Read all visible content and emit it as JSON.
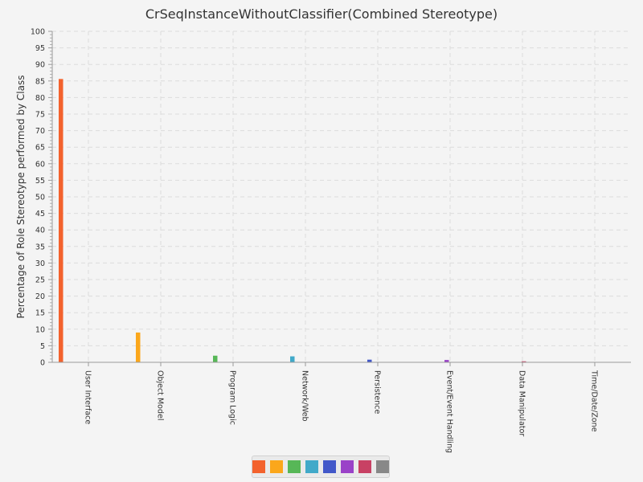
{
  "chart_data": {
    "type": "bar",
    "title": "CrSeqInstanceWithoutClassifier(Combined Stereotype)",
    "xlabel": "",
    "ylabel": "Percentage of Role Stereotype performed by Class",
    "ylim": [
      0,
      100
    ],
    "yticks": [
      0,
      5,
      10,
      15,
      20,
      25,
      30,
      35,
      40,
      45,
      50,
      55,
      60,
      65,
      70,
      75,
      80,
      85,
      90,
      95,
      100
    ],
    "grid": true,
    "legend_position": "bottom",
    "categories": [
      "User Interface",
      "Object Model",
      "Program Logic",
      "Network/Web",
      "Persistence",
      "Event/Event Handling",
      "Data Manipulator",
      "Time/Date/Zone"
    ],
    "series": [
      {
        "color": "#f3622d",
        "values": [
          85.6,
          0,
          0,
          0,
          0,
          0,
          0,
          0
        ]
      },
      {
        "color": "#fba71b",
        "values": [
          0,
          9.0,
          0,
          0,
          0,
          0,
          0,
          0
        ]
      },
      {
        "color": "#57b757",
        "values": [
          0,
          0,
          2.0,
          0,
          0,
          0,
          0,
          0
        ]
      },
      {
        "color": "#41a9c9",
        "values": [
          0,
          0,
          0,
          1.8,
          0,
          0,
          0,
          0
        ]
      },
      {
        "color": "#4258c9",
        "values": [
          0,
          0,
          0,
          0,
          0.8,
          0,
          0,
          0
        ]
      },
      {
        "color": "#9a42c8",
        "values": [
          0,
          0,
          0,
          0,
          0,
          0.7,
          0,
          0
        ]
      },
      {
        "color": "#c84164",
        "values": [
          0,
          0,
          0,
          0,
          0,
          0,
          0.3,
          0
        ]
      },
      {
        "color": "#888888",
        "values": [
          0,
          0,
          0,
          0,
          0,
          0,
          0,
          0
        ]
      }
    ]
  }
}
